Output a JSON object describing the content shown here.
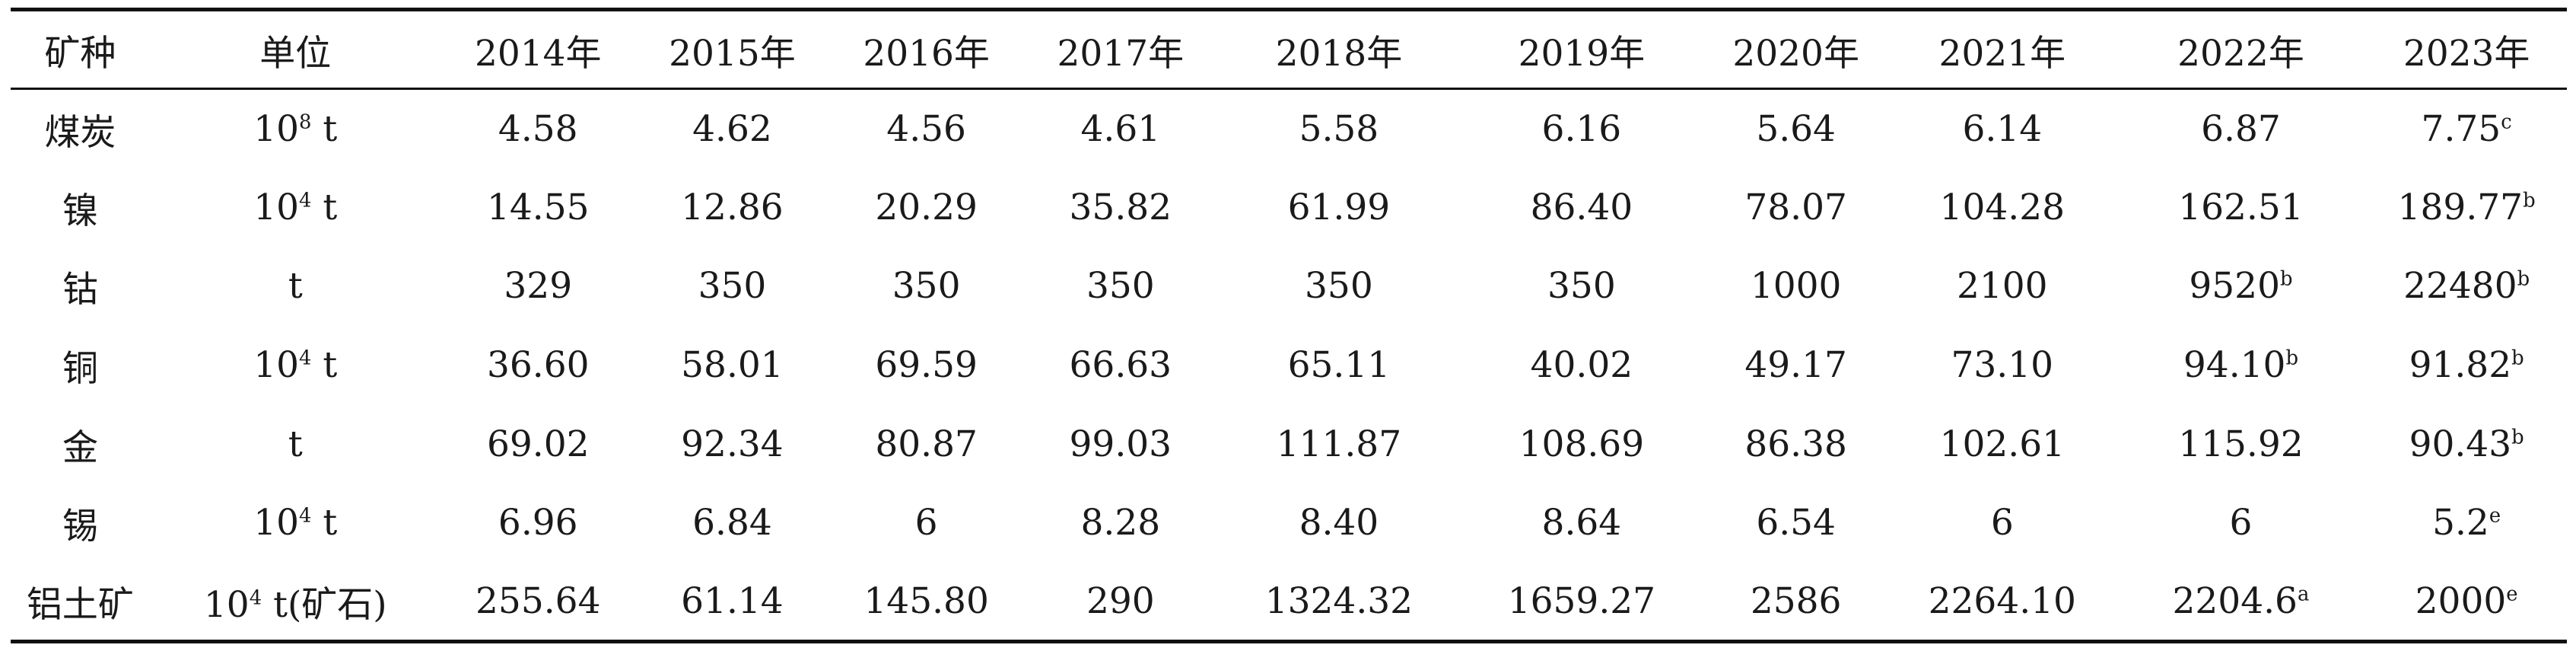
{
  "table": {
    "headers": [
      "矿种",
      "单位",
      "2014年",
      "2015年",
      "2016年",
      "2017年",
      "2018年",
      "2019年",
      "2020年",
      "2021年",
      "2022年",
      "2023年"
    ],
    "rows": [
      {
        "mineral": "煤炭",
        "unit_base": "10",
        "unit_exp": "8",
        "unit_suffix": " t",
        "values": [
          {
            "v": "4.58",
            "s": ""
          },
          {
            "v": "4.62",
            "s": ""
          },
          {
            "v": "4.56",
            "s": ""
          },
          {
            "v": "4.61",
            "s": ""
          },
          {
            "v": "5.58",
            "s": ""
          },
          {
            "v": "6.16",
            "s": ""
          },
          {
            "v": "5.64",
            "s": ""
          },
          {
            "v": "6.14",
            "s": ""
          },
          {
            "v": "6.87",
            "s": ""
          },
          {
            "v": "7.75",
            "s": "c"
          }
        ]
      },
      {
        "mineral": "镍",
        "unit_base": "10",
        "unit_exp": "4",
        "unit_suffix": " t",
        "values": [
          {
            "v": "14.55",
            "s": ""
          },
          {
            "v": "12.86",
            "s": ""
          },
          {
            "v": "20.29",
            "s": ""
          },
          {
            "v": "35.82",
            "s": ""
          },
          {
            "v": "61.99",
            "s": ""
          },
          {
            "v": "86.40",
            "s": ""
          },
          {
            "v": "78.07",
            "s": ""
          },
          {
            "v": "104.28",
            "s": ""
          },
          {
            "v": "162.51",
            "s": ""
          },
          {
            "v": "189.77",
            "s": "b"
          }
        ]
      },
      {
        "mineral": "钴",
        "unit_base": "t",
        "unit_exp": "",
        "unit_suffix": "",
        "values": [
          {
            "v": "329",
            "s": ""
          },
          {
            "v": "350",
            "s": ""
          },
          {
            "v": "350",
            "s": ""
          },
          {
            "v": "350",
            "s": ""
          },
          {
            "v": "350",
            "s": ""
          },
          {
            "v": "350",
            "s": ""
          },
          {
            "v": "1000",
            "s": ""
          },
          {
            "v": "2100",
            "s": ""
          },
          {
            "v": "9520",
            "s": "b"
          },
          {
            "v": "22480",
            "s": "b"
          }
        ]
      },
      {
        "mineral": "铜",
        "unit_base": "10",
        "unit_exp": "4",
        "unit_suffix": " t",
        "values": [
          {
            "v": "36.60",
            "s": ""
          },
          {
            "v": "58.01",
            "s": ""
          },
          {
            "v": "69.59",
            "s": ""
          },
          {
            "v": "66.63",
            "s": ""
          },
          {
            "v": "65.11",
            "s": ""
          },
          {
            "v": "40.02",
            "s": ""
          },
          {
            "v": "49.17",
            "s": ""
          },
          {
            "v": "73.10",
            "s": ""
          },
          {
            "v": "94.10",
            "s": "b"
          },
          {
            "v": "91.82",
            "s": "b"
          }
        ]
      },
      {
        "mineral": "金",
        "unit_base": "t",
        "unit_exp": "",
        "unit_suffix": "",
        "values": [
          {
            "v": "69.02",
            "s": ""
          },
          {
            "v": "92.34",
            "s": ""
          },
          {
            "v": "80.87",
            "s": ""
          },
          {
            "v": "99.03",
            "s": ""
          },
          {
            "v": "111.87",
            "s": ""
          },
          {
            "v": "108.69",
            "s": ""
          },
          {
            "v": "86.38",
            "s": ""
          },
          {
            "v": "102.61",
            "s": ""
          },
          {
            "v": "115.92",
            "s": ""
          },
          {
            "v": "90.43",
            "s": "b"
          }
        ]
      },
      {
        "mineral": "锡",
        "unit_base": "10",
        "unit_exp": "4",
        "unit_suffix": " t",
        "values": [
          {
            "v": "6.96",
            "s": ""
          },
          {
            "v": "6.84",
            "s": ""
          },
          {
            "v": "6",
            "s": ""
          },
          {
            "v": "8.28",
            "s": ""
          },
          {
            "v": "8.40",
            "s": ""
          },
          {
            "v": "8.64",
            "s": ""
          },
          {
            "v": "6.54",
            "s": ""
          },
          {
            "v": "6",
            "s": ""
          },
          {
            "v": "6",
            "s": ""
          },
          {
            "v": "5.2",
            "s": "e"
          }
        ]
      },
      {
        "mineral": "铝土矿",
        "unit_base": "10",
        "unit_exp": "4",
        "unit_suffix": " t(矿石)",
        "values": [
          {
            "v": "255.64",
            "s": ""
          },
          {
            "v": "61.14",
            "s": ""
          },
          {
            "v": "145.80",
            "s": ""
          },
          {
            "v": "290",
            "s": ""
          },
          {
            "v": "1324.32",
            "s": ""
          },
          {
            "v": "1659.27",
            "s": ""
          },
          {
            "v": "2586",
            "s": ""
          },
          {
            "v": "2264.10",
            "s": ""
          },
          {
            "v": "2204.6",
            "s": "a"
          },
          {
            "v": "2000",
            "s": "e"
          }
        ]
      }
    ]
  }
}
